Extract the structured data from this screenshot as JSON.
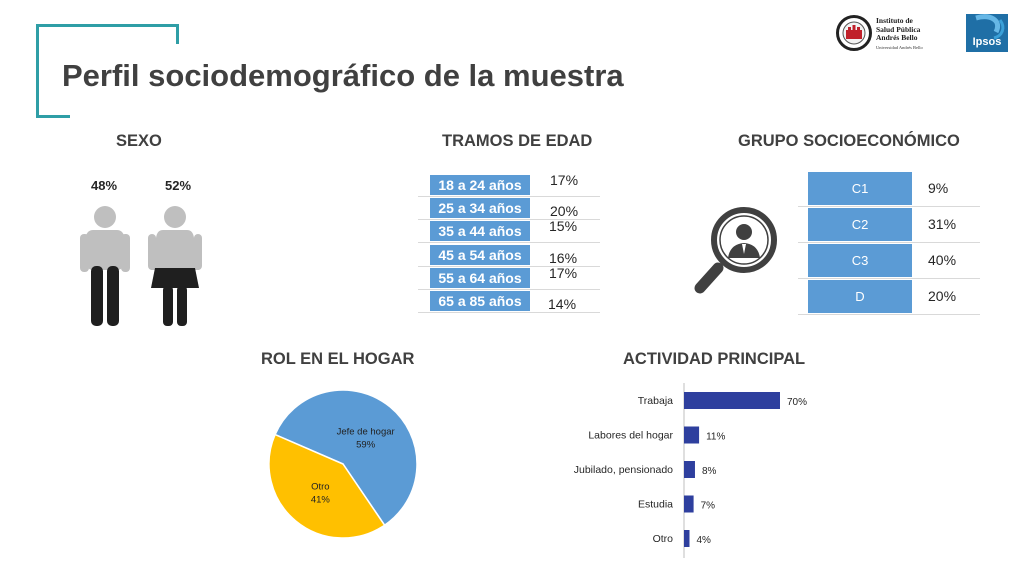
{
  "title": "Perfil sociodemográfico de la muestra",
  "logos": {
    "institute_line1": "Instituto de",
    "institute_line2": "Salud Pública",
    "institute_line3": "Andrés Bello",
    "institute_sub": "Universidad Andrés Bello",
    "ipsos": "Ipsos"
  },
  "sexo": {
    "heading": "SEXO",
    "male_pct": "48%",
    "female_pct": "52%"
  },
  "edad": {
    "heading": "TRAMOS DE EDAD",
    "rows": [
      {
        "label": "18 a 24 años",
        "value": "17%"
      },
      {
        "label": "25 a 34 años",
        "value": "20%"
      },
      {
        "label": "35 a 44 años",
        "value": "15%"
      },
      {
        "label": "45 a 54 años",
        "value": "16%"
      },
      {
        "label": "55 a 64 años",
        "value": "17%"
      },
      {
        "label": "65 a 85 años",
        "value": "14%"
      }
    ]
  },
  "gse": {
    "heading": "GRUPO SOCIOECONÓMICO",
    "rows": [
      {
        "label": "C1",
        "value": "9%"
      },
      {
        "label": "C2",
        "value": "31%"
      },
      {
        "label": "C3",
        "value": "40%"
      },
      {
        "label": "D",
        "value": "20%"
      }
    ]
  },
  "rol": {
    "heading": "ROL EN EL HOGAR"
  },
  "actividad": {
    "heading": "ACTIVIDAD PRINCIPAL"
  },
  "colors": {
    "accent_teal": "#2f9ea6",
    "label_blue": "#5b9bd5",
    "bar_navy": "#2e3f9e",
    "pie_blue": "#5b9bd5",
    "pie_yellow": "#ffc000",
    "icon_gray": "#bfbfbf",
    "icon_dark": "#1f1f1f"
  },
  "chart_data": [
    {
      "type": "pie",
      "categories": [
        "Jefe de hogar",
        "Otro"
      ],
      "values": [
        59,
        41
      ],
      "labels": [
        "59%",
        "41%"
      ],
      "colors": [
        "#5b9bd5",
        "#ffc000"
      ]
    },
    {
      "type": "bar",
      "orientation": "horizontal",
      "categories": [
        "Trabaja",
        "Labores del hogar",
        "Jubilado, pensionado",
        "Estudia",
        "Otro"
      ],
      "values": [
        70,
        11,
        8,
        7,
        4
      ],
      "labels": [
        "70%",
        "11%",
        "8%",
        "7%",
        "4%"
      ],
      "color": "#2e3f9e"
    }
  ]
}
